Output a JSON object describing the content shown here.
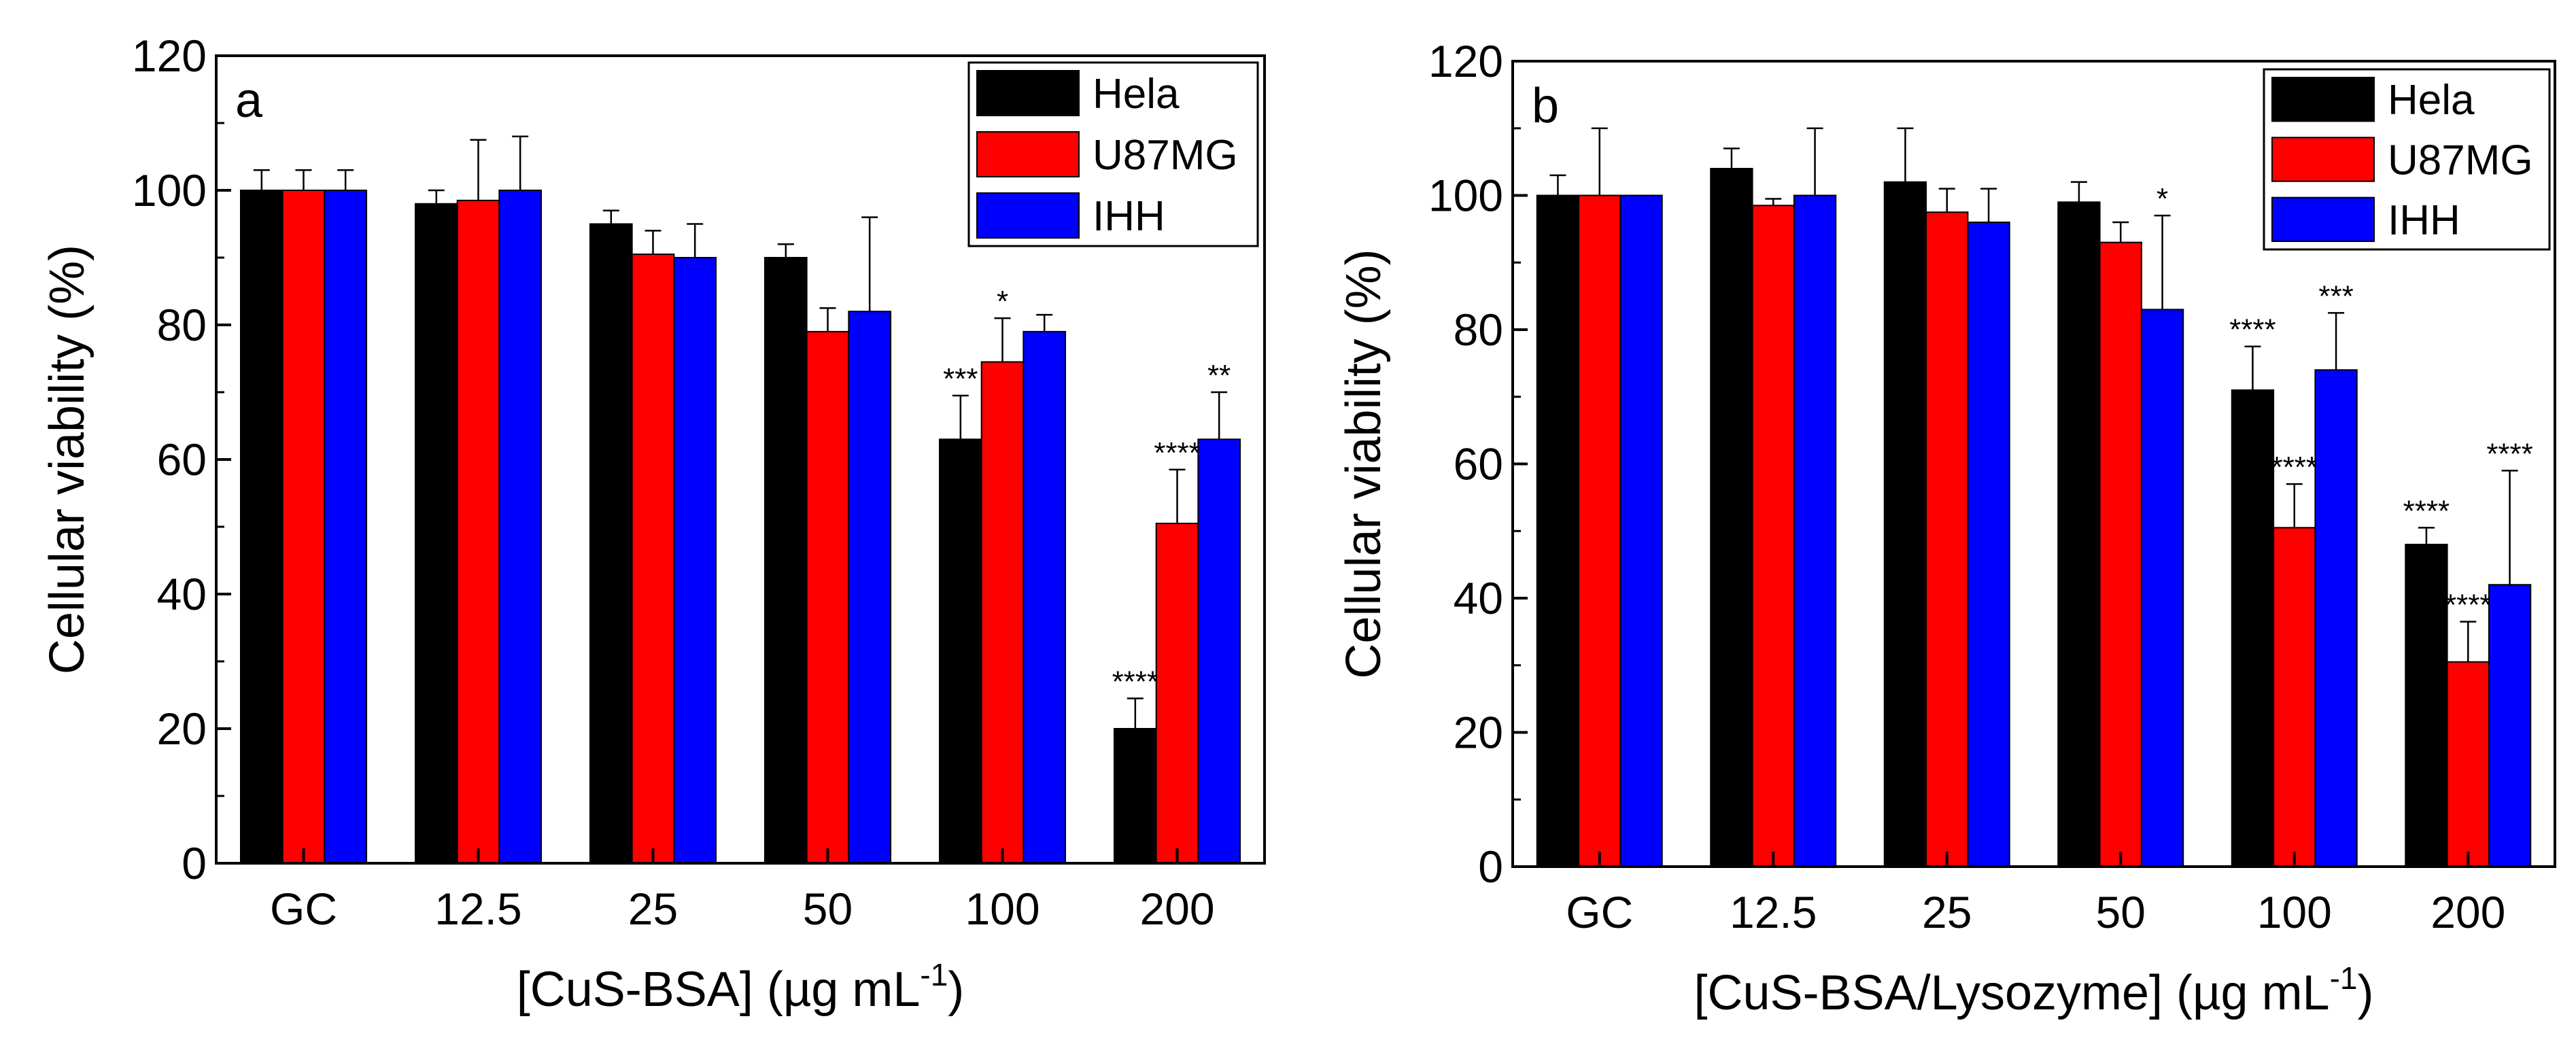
{
  "chart_data": [
    {
      "type": "bar",
      "panel_label": "a",
      "xlabel": "[CuS-BSA] (µg mL",
      "xlabel_sup": "-1",
      "xlabel_end": ")",
      "ylabel": "Cellular viability (%)",
      "ylim": [
        0,
        120
      ],
      "yticks": [
        "0",
        "20",
        "40",
        "60",
        "80",
        "100",
        "120"
      ],
      "categories": [
        "GC",
        "12.5",
        "25",
        "50",
        "100",
        "200"
      ],
      "legend_position": "top-right",
      "series": [
        {
          "name": "Hela",
          "color": "#000000",
          "values": [
            100,
            98,
            95,
            90,
            63,
            20
          ],
          "errors": [
            3,
            2,
            2,
            2,
            6.5,
            4.5
          ],
          "stars": [
            "",
            "",
            "",
            "",
            "***",
            "****"
          ]
        },
        {
          "name": "U87MG",
          "color": "#ff0000",
          "values": [
            100,
            98.5,
            90.5,
            79,
            74.5,
            50.5
          ],
          "errors": [
            3,
            9,
            3.5,
            3.5,
            6.5,
            8
          ],
          "stars": [
            "",
            "",
            "",
            "",
            "*",
            "****"
          ]
        },
        {
          "name": "IHH",
          "color": "#0000ff",
          "values": [
            100,
            100,
            90,
            82,
            79,
            63
          ],
          "errors": [
            3,
            8,
            5,
            14,
            2.5,
            7
          ],
          "stars": [
            "",
            "",
            "",
            "",
            "",
            "**"
          ]
        }
      ]
    },
    {
      "type": "bar",
      "panel_label": "b",
      "xlabel": "[CuS-BSA/Lysozyme] (µg mL",
      "xlabel_sup": "-1",
      "xlabel_end": ")",
      "ylabel": "Cellular viability (%)",
      "ylim": [
        0,
        120
      ],
      "yticks": [
        "0",
        "20",
        "40",
        "60",
        "80",
        "100",
        "120"
      ],
      "categories": [
        "GC",
        "12.5",
        "25",
        "50",
        "100",
        "200"
      ],
      "legend_position": "top-right",
      "series": [
        {
          "name": "Hela",
          "color": "#000000",
          "values": [
            100,
            104,
            102,
            99,
            71,
            48
          ],
          "errors": [
            3,
            3,
            8,
            3,
            6.5,
            2.5
          ],
          "stars": [
            "",
            "",
            "",
            "",
            "****",
            "****"
          ]
        },
        {
          "name": "U87MG",
          "color": "#ff0000",
          "values": [
            100,
            98.5,
            97.5,
            93,
            50.5,
            30.5
          ],
          "errors": [
            10,
            1,
            3.5,
            3,
            6.5,
            6
          ],
          "stars": [
            "",
            "",
            "",
            "",
            "****",
            "****"
          ]
        },
        {
          "name": "IHH",
          "color": "#0000ff",
          "values": [
            100,
            100,
            96,
            83,
            74,
            42
          ],
          "errors": [
            0,
            10,
            5,
            14,
            8.5,
            17
          ],
          "stars": [
            "",
            "",
            "",
            "*",
            "***",
            "****"
          ]
        }
      ]
    }
  ]
}
